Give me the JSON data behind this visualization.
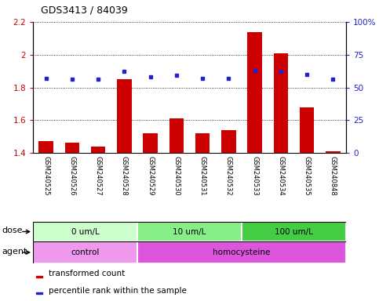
{
  "title": "GDS3413 / 84039",
  "samples": [
    "GSM240525",
    "GSM240526",
    "GSM240527",
    "GSM240528",
    "GSM240529",
    "GSM240530",
    "GSM240531",
    "GSM240532",
    "GSM240533",
    "GSM240534",
    "GSM240535",
    "GSM240848"
  ],
  "transformed_count": [
    1.47,
    1.46,
    1.44,
    1.85,
    1.52,
    1.61,
    1.52,
    1.54,
    2.14,
    2.01,
    1.68,
    1.41
  ],
  "percentile_rank": [
    57,
    56,
    56,
    62,
    58,
    59,
    57,
    57,
    63,
    62,
    60,
    56
  ],
  "ylim_left": [
    1.4,
    2.2
  ],
  "ylim_right": [
    0,
    100
  ],
  "yticks_left": [
    1.4,
    1.6,
    1.8,
    2.0,
    2.2
  ],
  "ytick_labels_left": [
    "1.4",
    "1.6",
    "1.8",
    "2",
    "2.2"
  ],
  "yticks_right": [
    0,
    25,
    50,
    75,
    100
  ],
  "ytick_labels_right": [
    "0",
    "25",
    "50",
    "75",
    "100%"
  ],
  "bar_color": "#cc0000",
  "dot_color": "#2222cc",
  "bar_baseline": 1.4,
  "dose_groups": [
    {
      "label": "0 um/L",
      "start": 0,
      "end": 4,
      "color": "#ccffcc"
    },
    {
      "label": "10 um/L",
      "start": 4,
      "end": 8,
      "color": "#88ee88"
    },
    {
      "label": "100 um/L",
      "start": 8,
      "end": 12,
      "color": "#44cc44"
    }
  ],
  "agent_groups": [
    {
      "label": "control",
      "start": 0,
      "end": 4,
      "color": "#ee99ee"
    },
    {
      "label": "homocysteine",
      "start": 4,
      "end": 12,
      "color": "#dd55dd"
    }
  ],
  "dose_label": "dose",
  "agent_label": "agent",
  "legend_bar": "transformed count",
  "legend_dot": "percentile rank within the sample",
  "background_color": "#ffffff",
  "sample_bg": "#cccccc",
  "tick_color_left": "#cc0000",
  "tick_color_right": "#2222cc"
}
